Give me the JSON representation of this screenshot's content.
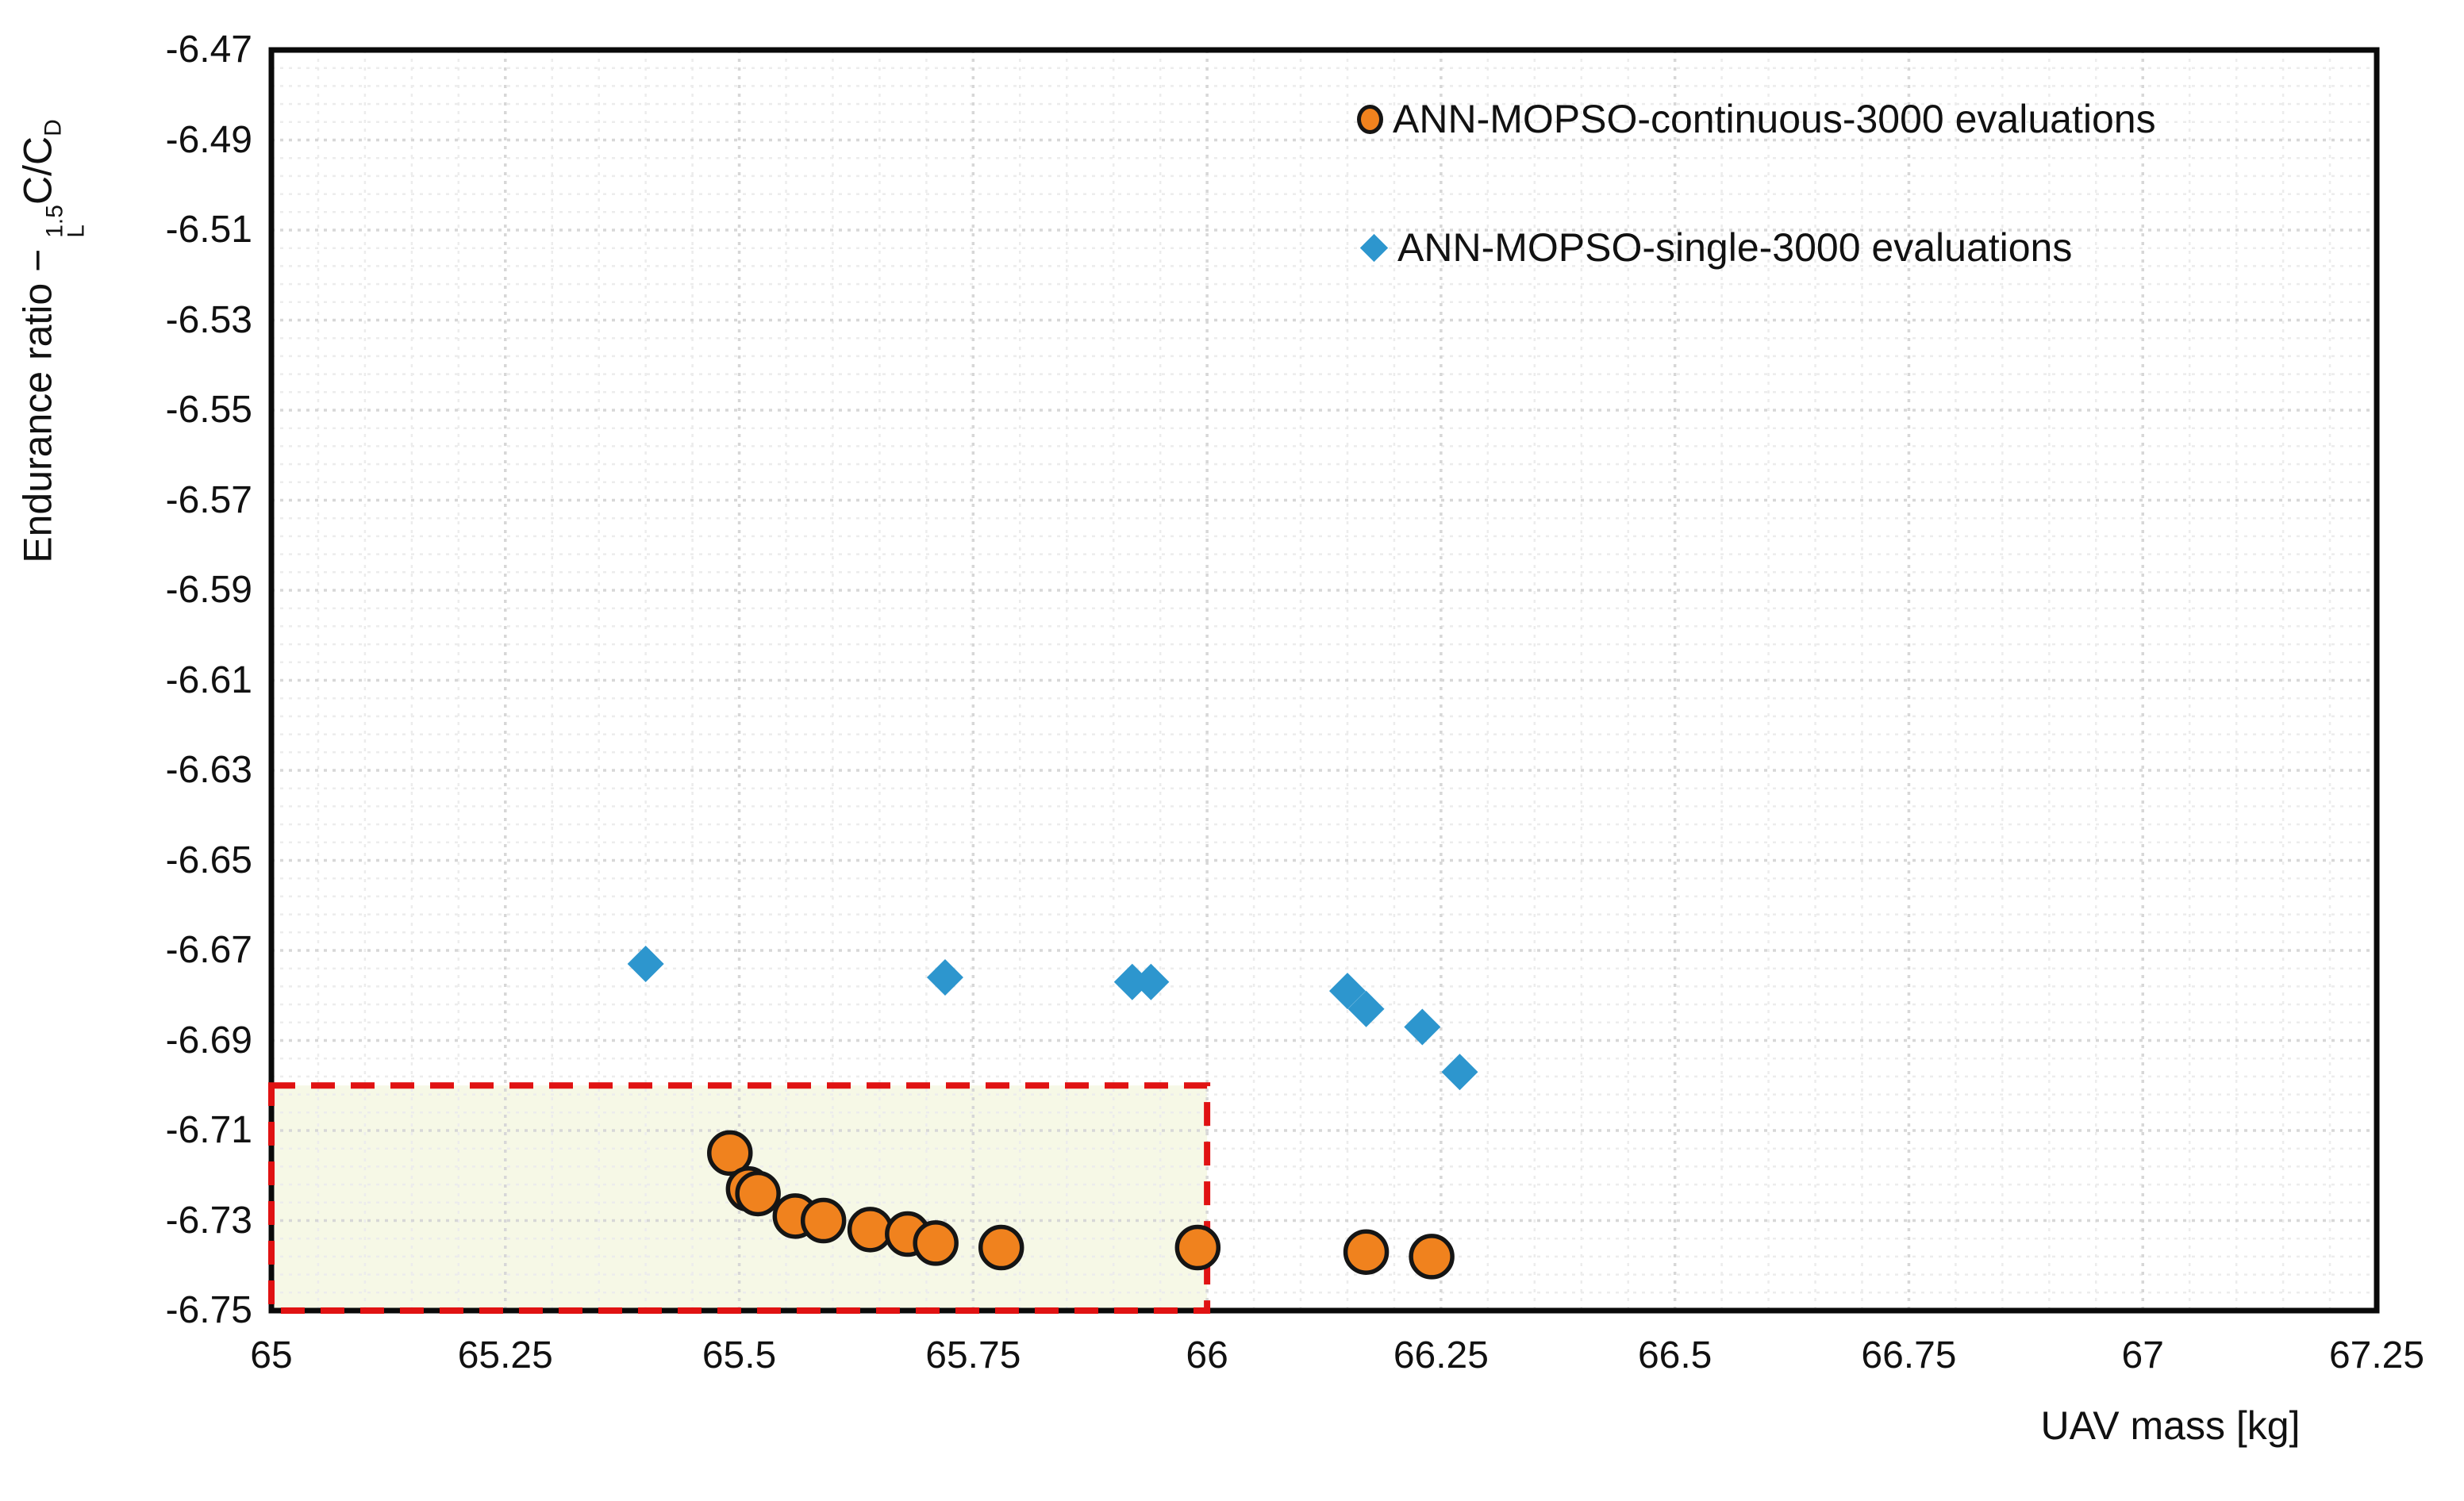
{
  "chart_data": {
    "type": "scatter",
    "title": "",
    "xlabel": "UAV mass [kg]",
    "ylabel": "Endurance ratio − C_L^1.5 / C_D",
    "ylabel_parts": {
      "prefix": "Endurance ratio − ",
      "c1": "C",
      "c1_sup": "1.5",
      "c1_sub": "L",
      "slash": "/",
      "c2": "C",
      "c2_sub": "D"
    },
    "xlim": [
      65,
      67.25
    ],
    "ylim": [
      -6.75,
      -6.47
    ],
    "x_tick_labels": [
      "65",
      "65.25",
      "65.5",
      "65.75",
      "66",
      "66.25",
      "66.5",
      "66.75",
      "67",
      "67.25"
    ],
    "x_tick_values": [
      65,
      65.25,
      65.5,
      65.75,
      66,
      66.25,
      66.5,
      66.75,
      67,
      67.25
    ],
    "y_tick_labels": [
      "-6.47",
      "-6.49",
      "-6.51",
      "-6.53",
      "-6.55",
      "-6.57",
      "-6.59",
      "-6.61",
      "-6.63",
      "-6.65",
      "-6.67",
      "-6.69",
      "-6.71",
      "-6.73",
      "-6.75"
    ],
    "y_tick_values": [
      -6.47,
      -6.49,
      -6.51,
      -6.53,
      -6.55,
      -6.57,
      -6.59,
      -6.61,
      -6.63,
      -6.65,
      -6.67,
      -6.69,
      -6.71,
      -6.73,
      -6.75
    ],
    "grid": {
      "on": true,
      "x_major_step": 0.25,
      "x_minor_step": 0.05,
      "y_major_step": 0.02,
      "y_minor_step": 0.004,
      "major_color": "#d7d7d7",
      "minor_color": "#ececec",
      "style": "dotted"
    },
    "legend_position": "top-right-inside",
    "series": [
      {
        "name": "ANN-MOPSO-continuous-3000 evaluations",
        "marker": "circle",
        "color": "#F0821E",
        "edge_color": "#151515",
        "points": [
          [
            65.49,
            -6.715
          ],
          [
            65.51,
            -6.723
          ],
          [
            65.52,
            -6.724
          ],
          [
            65.56,
            -6.729
          ],
          [
            65.59,
            -6.73
          ],
          [
            65.64,
            -6.732
          ],
          [
            65.68,
            -6.733
          ],
          [
            65.71,
            -6.735
          ],
          [
            65.78,
            -6.736
          ],
          [
            65.99,
            -6.736
          ],
          [
            66.17,
            -6.737
          ],
          [
            66.24,
            -6.738
          ]
        ]
      },
      {
        "name": "ANN-MOPSO-single-3000 evaluations",
        "marker": "diamond",
        "color": "#2D96CE",
        "edge_color": "none",
        "points": [
          [
            65.4,
            -6.673
          ],
          [
            65.72,
            -6.676
          ],
          [
            65.92,
            -6.677
          ],
          [
            65.94,
            -6.677
          ],
          [
            66.15,
            -6.679
          ],
          [
            66.17,
            -6.683
          ],
          [
            66.23,
            -6.687
          ],
          [
            66.27,
            -6.697
          ]
        ]
      }
    ],
    "annotation_box": {
      "x0": 65,
      "x1": 66,
      "y0": -6.75,
      "y1": -6.7,
      "stroke": "#E01212",
      "fill": "#F6F8E6",
      "stroke_style": "dashed"
    },
    "plot_border_color": "#0a0a0a"
  }
}
